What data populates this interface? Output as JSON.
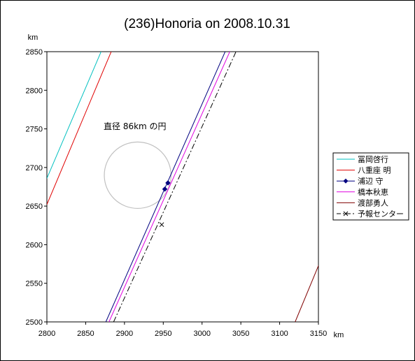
{
  "chart_data": {
    "type": "line",
    "title": "(236)Honoria on 2008.10.31",
    "xlabel": "km",
    "ylabel": "km",
    "xlim": [
      2800,
      3150
    ],
    "ylim": [
      2500,
      2850
    ],
    "xticks": [
      2800,
      2850,
      2900,
      2950,
      3000,
      3050,
      3100,
      3150
    ],
    "yticks": [
      2500,
      2550,
      2600,
      2650,
      2700,
      2750,
      2800,
      2850
    ],
    "grid": false,
    "legend_position": "right",
    "circle": {
      "label": "直径 86km の円",
      "cx": 2917,
      "cy": 2690,
      "r": 43,
      "color": "#c0c0c0"
    },
    "series": [
      {
        "name": "冨岡啓行",
        "color": "#00c0c0",
        "style": "solid",
        "marker": "none",
        "segments": [
          [
            [
              2800,
              2686
            ],
            [
              2872,
              2855
            ]
          ]
        ]
      },
      {
        "name": "八重座 明",
        "color": "#e00000",
        "style": "solid",
        "marker": "none",
        "segments": [
          [
            [
              2800,
              2652
            ],
            [
              2885,
              2855
            ]
          ]
        ]
      },
      {
        "name": "浦辺 守",
        "color": "#000080",
        "style": "solid",
        "marker": "diamond",
        "segments": [
          [
            [
              2876,
              2500
            ],
            [
              3032,
              2855
            ]
          ]
        ],
        "points": [
          [
            2956,
            2680
          ],
          [
            2952,
            2672
          ]
        ]
      },
      {
        "name": "橋本秋恵",
        "color": "#e000e0",
        "style": "solid",
        "marker": "none",
        "segments": [
          [
            [
              2880,
              2500
            ],
            [
              3038,
              2855
            ]
          ]
        ]
      },
      {
        "name": "渡部勇人",
        "color": "#800000",
        "style": "solid",
        "marker": "none",
        "segments": [
          [
            [
              3120,
              2500
            ],
            [
              3153,
              2580
            ]
          ]
        ]
      },
      {
        "name": "予報センター",
        "color": "#000000",
        "style": "dashdot",
        "marker": "x",
        "segments": [
          [
            [
              2886,
              2500
            ],
            [
              3046,
              2855
            ]
          ]
        ],
        "points": [
          [
            2948,
            2626
          ]
        ]
      }
    ]
  }
}
